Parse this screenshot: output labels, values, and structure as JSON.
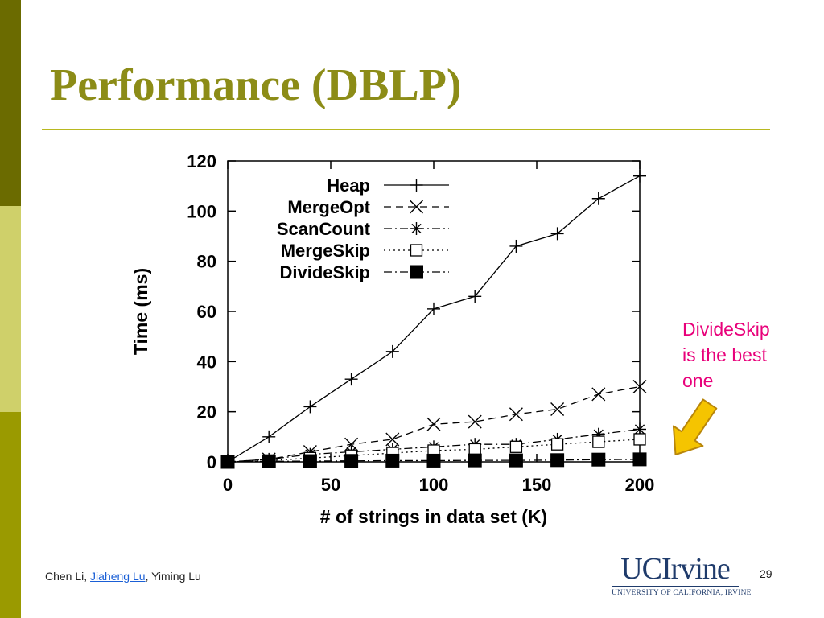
{
  "slide": {
    "title": "Performance (DBLP)",
    "note_lines": [
      "DivideSkip",
      "is the best",
      "one"
    ],
    "authors": {
      "a1": "Chen Li",
      "sep1": ", ",
      "a2": "Jiaheng Lu",
      "sep2": ", ",
      "a3": "Yiming Lu"
    },
    "logo_main": "UCIrvine",
    "logo_sub": "UNIVERSITY OF CALIFORNIA, IRVINE",
    "page_number": "29"
  },
  "colors": {
    "sidebar_dark": "#6b6b00",
    "sidebar_light": "#cfd06a",
    "sidebar_mid": "#9a9a00",
    "title": "#8c8c17",
    "note": "#e8007a",
    "arrow_fill": "#f5c400",
    "arrow_stroke": "#b8860b",
    "link": "#1a5fd6",
    "logo": "#1f3b6b"
  },
  "chart_data": {
    "type": "line",
    "xlabel": "# of strings in data set (K)",
    "ylabel": "Time (ms)",
    "xlim": [
      0,
      200
    ],
    "ylim": [
      0,
      120
    ],
    "xticks": [
      0,
      50,
      100,
      150,
      200
    ],
    "yticks": [
      0,
      20,
      40,
      60,
      80,
      100,
      120
    ],
    "grid": false,
    "legend_position": "top-left",
    "x": [
      0,
      20,
      40,
      60,
      80,
      100,
      120,
      140,
      160,
      180,
      200
    ],
    "series": [
      {
        "name": "Heap",
        "marker": "plus",
        "dash": "solid",
        "values": [
          0,
          10,
          22,
          33,
          44,
          61,
          66,
          86,
          91,
          105,
          114
        ]
      },
      {
        "name": "MergeOpt",
        "marker": "cross",
        "dash": "dashed",
        "values": [
          0,
          1,
          4,
          7,
          9,
          15,
          16,
          19,
          21,
          27,
          30
        ]
      },
      {
        "name": "ScanCount",
        "marker": "star",
        "dash": "dashdot",
        "values": [
          0,
          1,
          3,
          4,
          5,
          6,
          7,
          7,
          9,
          11,
          13
        ]
      },
      {
        "name": "MergeSkip",
        "marker": "open-square",
        "dash": "dotted",
        "values": [
          0,
          0.5,
          1.5,
          2.5,
          3.5,
          4.5,
          5,
          6,
          7,
          8,
          9
        ]
      },
      {
        "name": "DivideSkip",
        "marker": "filled-square",
        "dash": "dashdot",
        "values": [
          0,
          0.2,
          0.3,
          0.4,
          0.5,
          0.5,
          0.6,
          0.6,
          0.7,
          0.9,
          1
        ]
      }
    ]
  }
}
